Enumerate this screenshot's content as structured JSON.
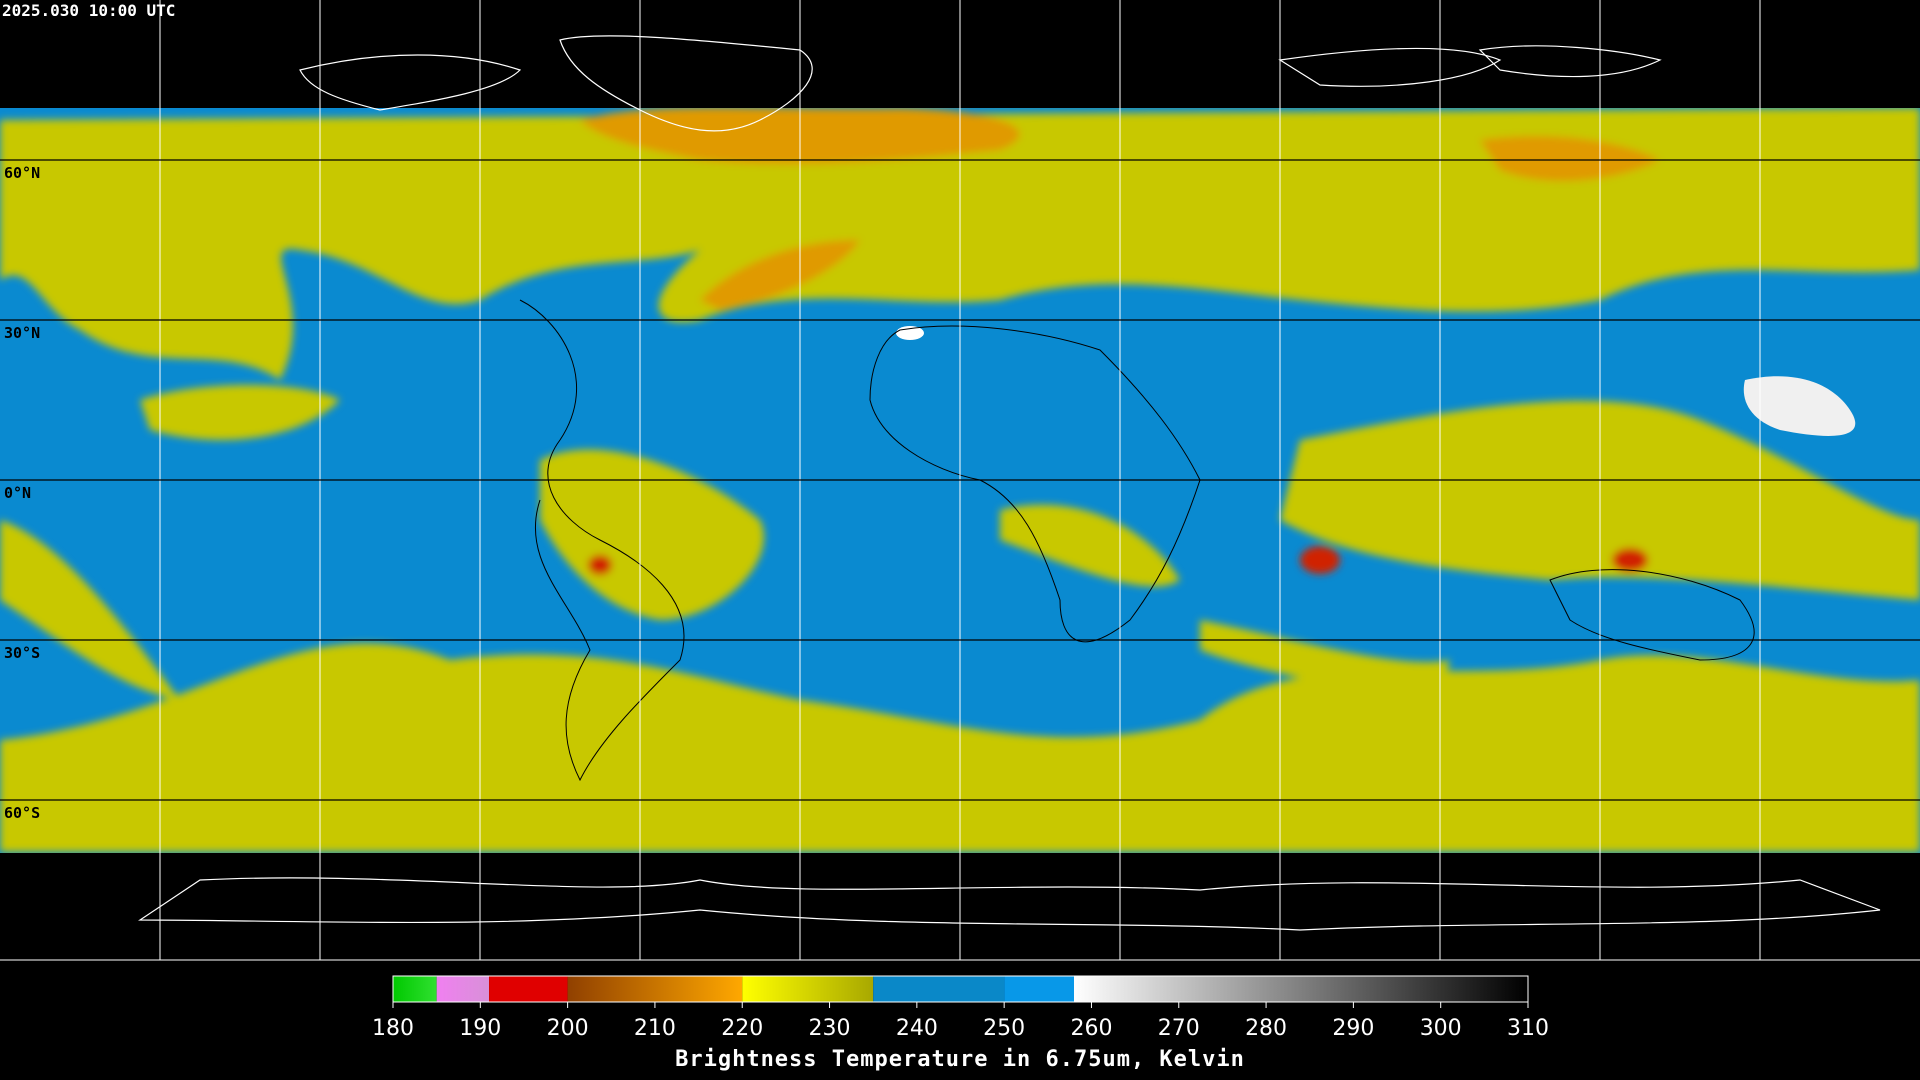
{
  "timestamp": "2025.030 10:00 UTC",
  "latitudes": [
    {
      "value": 60,
      "label": "60°N"
    },
    {
      "value": 30,
      "label": "30°N"
    },
    {
      "value": 0,
      "label": "0°N"
    },
    {
      "value": -30,
      "label": "30°S"
    },
    {
      "value": -60,
      "label": "60°S"
    }
  ],
  "colorbar": {
    "title": "Brightness Temperature in 6.75um, Kelvin",
    "lim": [
      180,
      310
    ],
    "ticks": [
      180,
      190,
      200,
      210,
      220,
      230,
      240,
      250,
      260,
      270,
      280,
      290,
      300,
      310
    ],
    "segments": [
      {
        "from": 180,
        "to": 185,
        "colors": [
          "#00c800",
          "#30e030"
        ]
      },
      {
        "from": 185,
        "to": 191,
        "colors": [
          "#f080f0",
          "#d890d8"
        ]
      },
      {
        "from": 191,
        "to": 200,
        "colors": [
          "#e00000",
          "#e00000"
        ]
      },
      {
        "from": 200,
        "to": 220,
        "colors": [
          "#904000",
          "#ffa800"
        ]
      },
      {
        "from": 220,
        "to": 235,
        "colors": [
          "#ffff00",
          "#a8a800"
        ]
      },
      {
        "from": 235,
        "to": 250,
        "colors": [
          "#0a88c8",
          "#0a88c8"
        ]
      },
      {
        "from": 250,
        "to": 258,
        "colors": [
          "#0898e8",
          "#0898e8"
        ]
      },
      {
        "from": 258,
        "to": 310,
        "colors": [
          "#ffffff",
          "#000000"
        ]
      }
    ]
  }
}
